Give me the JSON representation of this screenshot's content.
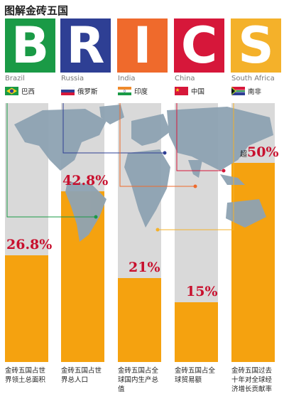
{
  "title": "图解金砖五国",
  "colors": {
    "brazil": "#1a9a46",
    "russia": "#2e3f94",
    "india": "#ef6a2c",
    "china": "#d6173a",
    "south_africa": "#f4b12a",
    "bar": "#f5a20f",
    "value_text": "#c8102e"
  },
  "tiles": [
    {
      "letter": "B"
    },
    {
      "letter": "R"
    },
    {
      "letter": "I"
    },
    {
      "letter": "C"
    },
    {
      "letter": "S"
    }
  ],
  "countries": [
    {
      "en": "Brazil",
      "zh": "巴西",
      "flag": "brazil-flag-icon"
    },
    {
      "en": "Russia",
      "zh": "俄罗斯",
      "flag": "russia-flag-icon"
    },
    {
      "en": "India",
      "zh": "印度",
      "flag": "india-flag-icon"
    },
    {
      "en": "China",
      "zh": "中国",
      "flag": "china-flag-icon"
    },
    {
      "en": "South Africa",
      "zh": "南非",
      "flag": "south-africa-flag-icon"
    }
  ],
  "chart_data": {
    "type": "bar",
    "categories": [
      "金砖五国占世界领土总面积",
      "金砖五国占世界总人口",
      "金砖五国占全球国内生产总值",
      "金砖五国占全球贸易额",
      "金砖五国过去十年对全球经济增长贡献率"
    ],
    "values": [
      26.8,
      42.8,
      21,
      15,
      50
    ],
    "labels": [
      "26.8%",
      "42.8%",
      "21%",
      "15%",
      "50%"
    ],
    "prefixes": [
      "",
      "",
      "",
      "",
      "超"
    ],
    "ylim": [
      0,
      65
    ],
    "grid": false
  },
  "captions": [
    "金砖五国占世界领土总面积",
    "金砖五国占世界总人口",
    "金砖五国占全球国内生产总值",
    "金砖五国占全球贸易额",
    "金砖五国过去十年对全球经济增长贡献率"
  ]
}
